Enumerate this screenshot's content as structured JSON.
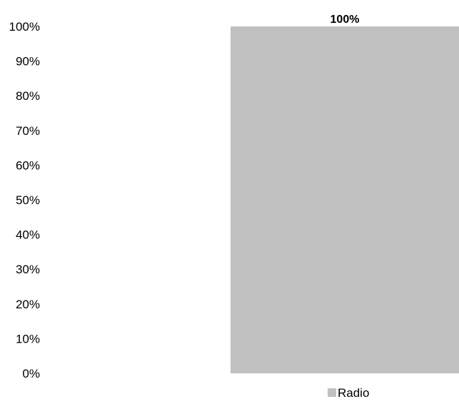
{
  "chart_data": {
    "type": "bar",
    "categories": [
      ""
    ],
    "series": [
      {
        "name": "Radio",
        "values": [
          100
        ],
        "color": "#c0c0c0"
      }
    ],
    "data_labels": [
      "100%"
    ],
    "y_ticks": [
      0,
      10,
      20,
      30,
      40,
      50,
      60,
      70,
      80,
      90,
      100
    ],
    "y_tick_labels": [
      "0%",
      "10%",
      "20%",
      "30%",
      "40%",
      "50%",
      "60%",
      "70%",
      "80%",
      "90%",
      "100%"
    ],
    "ylim": [
      0,
      100
    ],
    "grid": false,
    "legend_position": "bottom",
    "title": "",
    "xlabel": "",
    "ylabel": ""
  }
}
